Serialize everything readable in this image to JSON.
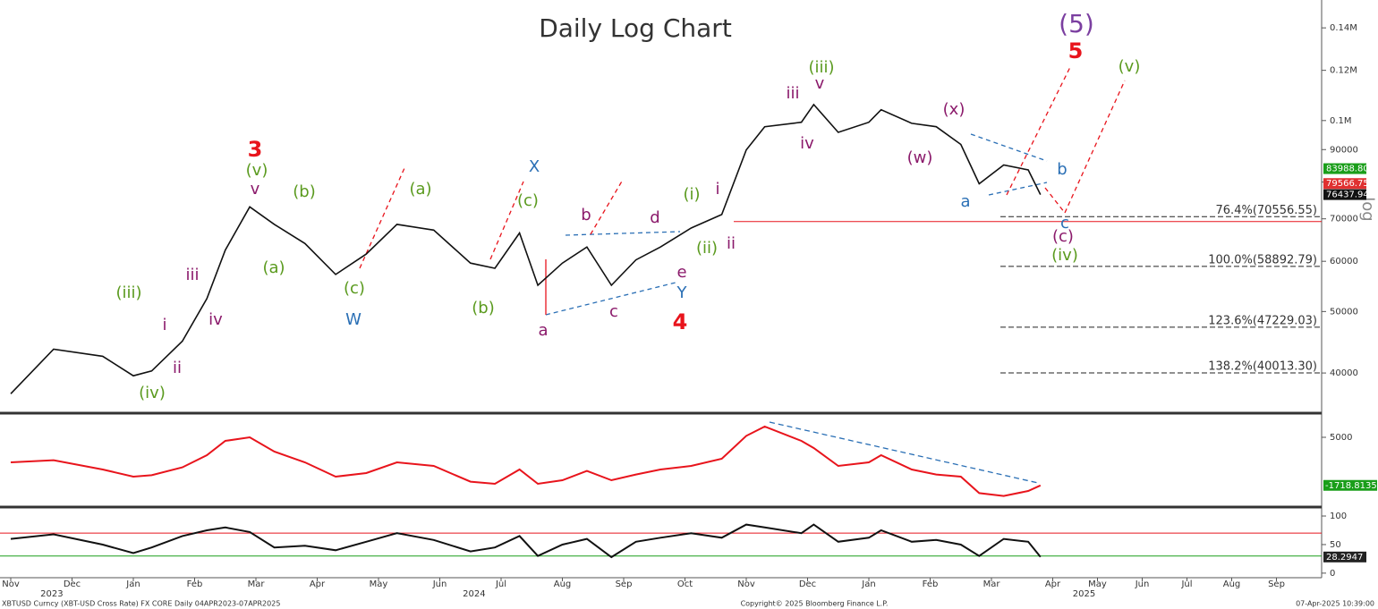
{
  "chart_data": {
    "type": "line",
    "title": "Daily Log Chart",
    "log": true,
    "x": [
      0,
      0.7,
      1.5,
      2,
      2.3,
      2.8,
      3.2,
      3.5,
      3.9,
      4.3,
      4.8,
      5.3,
      5.8,
      6.3,
      6.9,
      7.5,
      7.9,
      8.3,
      8.6,
      9.0,
      9.4,
      9.8,
      10.2,
      10.6,
      11.1,
      11.6,
      12,
      12.3,
      12.9,
      13.1,
      13.5,
      14.0,
      14.2,
      14.7,
      15.1,
      15.5,
      15.8,
      16.2,
      16.6,
      16.8
    ],
    "series": [
      {
        "color": "#111111",
        "values": [
          37100,
          43600,
          42500,
          39600,
          40300,
          44900,
          52400,
          62500,
          73100,
          68600,
          64000,
          57200,
          61600,
          68600,
          67200,
          59600,
          58500,
          66500,
          55000,
          59600,
          63200,
          55000,
          60300,
          63200,
          67700,
          71100,
          89900,
          97800,
          99400,
          106000,
          95800,
          99400,
          104000,
          99000,
          97800,
          91700,
          79500,
          85100,
          83600,
          76437.94
        ]
      }
    ],
    "ylim": [
      34800,
      154900
    ],
    "yticks": [
      40000,
      50000,
      60000,
      70000,
      80000,
      90000,
      {
        "value": 100000,
        "label": "0.1M"
      },
      {
        "value": 120000,
        "label": "0.12M"
      },
      {
        "value": 140000,
        "label": "0.14M"
      }
    ],
    "xlim": [
      -0.2,
      22.5
    ],
    "xticks": [
      {
        "value": 0,
        "label": "Nov"
      },
      {
        "value": 1,
        "label": "Dec"
      },
      {
        "value": 2,
        "label": "Jan"
      },
      {
        "value": 3,
        "label": "Feb"
      },
      {
        "value": 4,
        "label": "Mar"
      },
      {
        "value": 5,
        "label": "Apr"
      },
      {
        "value": 6,
        "label": "May"
      },
      {
        "value": 7,
        "label": "Jun"
      },
      {
        "value": 8,
        "label": "Jul"
      },
      {
        "value": 9,
        "label": "Aug"
      },
      {
        "value": 10,
        "label": "Sep"
      },
      {
        "value": 11,
        "label": "Oct"
      },
      {
        "value": 12,
        "label": "Nov"
      },
      {
        "value": 13,
        "label": "Dec"
      },
      {
        "value": 14,
        "label": "Jan"
      },
      {
        "value": 15,
        "label": "Feb"
      },
      {
        "value": 16,
        "label": "Mar"
      },
      {
        "value": 17,
        "label": "Apr"
      },
      {
        "value": 18,
        "label": "May"
      },
      {
        "value": 19,
        "label": "Jun"
      },
      {
        "value": 20,
        "label": "Jul"
      },
      {
        "value": 21,
        "label": "Aug"
      },
      {
        "value": 22,
        "label": "Sep"
      }
    ],
    "year_labels": [
      {
        "value": 0.67,
        "label": "2023"
      },
      {
        "value": 7.56,
        "label": "2024"
      },
      {
        "value": 17.7,
        "label": "2025"
      }
    ],
    "axis_label": "log",
    "price_labels": [
      {
        "value": 83988.8,
        "label": "83988.80",
        "color": "#1a9e1a"
      },
      {
        "value": 79566.75,
        "label": "79566.75",
        "color": "#e03030"
      },
      {
        "value": 76437.94,
        "label": "76437.94",
        "color": "#111111"
      }
    ],
    "support_line": 69300,
    "fib_levels": [
      {
        "value": 70556.55,
        "label": "76.4%(70556.55)"
      },
      {
        "value": 58892.79,
        "label": "100.0%(58892.79)"
      },
      {
        "value": 47229.03,
        "label": "123.6%(47229.03)"
      },
      {
        "value": 40013.3,
        "label": "138.2%(40013.30)"
      }
    ],
    "annotations": [
      {
        "text": "3",
        "color": "#e8141c"
      },
      {
        "text": "(v)",
        "color": "#5a9a1e"
      },
      {
        "text": "v",
        "color": "#8b1a6b"
      },
      {
        "text": "(b)",
        "color": "#5a9a1e"
      },
      {
        "text": "(a)",
        "color": "#5a9a1e"
      },
      {
        "text": "X",
        "color": "#2a6fb5"
      },
      {
        "text": "(c)",
        "color": "#5a9a1e"
      },
      {
        "text": "b",
        "color": "#8b1a6b"
      },
      {
        "text": "d",
        "color": "#8b1a6b"
      },
      {
        "text": "(i)",
        "color": "#5a9a1e"
      },
      {
        "text": "i",
        "color": "#8b1a6b"
      },
      {
        "text": "iii",
        "color": "#8b1a6b"
      },
      {
        "text": "(iii)",
        "color": "#5a9a1e"
      },
      {
        "text": "i",
        "color": "#8b1a6b"
      },
      {
        "text": "iv",
        "color": "#8b1a6b"
      },
      {
        "text": "ii",
        "color": "#8b1a6b"
      },
      {
        "text": "(iv)",
        "color": "#5a9a1e"
      },
      {
        "text": "(a)",
        "color": "#5a9a1e"
      },
      {
        "text": "(c)",
        "color": "#5a9a1e"
      },
      {
        "text": "W",
        "color": "#2a6fb5"
      },
      {
        "text": "(b)",
        "color": "#5a9a1e"
      },
      {
        "text": "a",
        "color": "#8b1a6b"
      },
      {
        "text": "c",
        "color": "#8b1a6b"
      },
      {
        "text": "e",
        "color": "#8b1a6b"
      },
      {
        "text": "Y",
        "color": "#2a6fb5"
      },
      {
        "text": "4",
        "color": "#e8141c"
      },
      {
        "text": "(ii)",
        "color": "#5a9a1e"
      },
      {
        "text": "ii",
        "color": "#8b1a6b"
      },
      {
        "text": "(iii)",
        "color": "#5a9a1e"
      },
      {
        "text": "iii",
        "color": "#8b1a6b"
      },
      {
        "text": "v",
        "color": "#8b1a6b"
      },
      {
        "text": "iv",
        "color": "#8b1a6b"
      },
      {
        "text": "(x)",
        "color": "#8b1a6b"
      },
      {
        "text": "(w)",
        "color": "#8b1a6b"
      },
      {
        "text": "a",
        "color": "#2a6fb5"
      },
      {
        "text": "b",
        "color": "#2a6fb5"
      },
      {
        "text": "c",
        "color": "#2a6fb5"
      },
      {
        "text": "(c)",
        "color": "#8b1a6b"
      },
      {
        "text": "(iv)",
        "color": "#5a9a1e"
      },
      {
        "text": "(5)",
        "color": "#7b3fa0"
      },
      {
        "text": "5",
        "color": "#e8141c"
      },
      {
        "text": "(v)",
        "color": "#5a9a1e"
      }
    ],
    "macd": {
      "ylim": [
        -4500,
        8125
      ],
      "yticks": [
        5000
      ],
      "series": [
        {
          "color": "#e8141c",
          "values": [
            1500,
            1800,
            500,
            -500,
            -300,
            800,
            2500,
            4500,
            5000,
            3000,
            1500,
            -500,
            0,
            1500,
            1000,
            -1200,
            -1500,
            500,
            -1500,
            -1000,
            300,
            -1000,
            -200,
            500,
            1000,
            2000,
            5200,
            6500,
            4500,
            3500,
            1000,
            1500,
            2500,
            500,
            -200,
            -500,
            -2800,
            -3200,
            -2500,
            -1718.8135
          ]
        }
      ],
      "value_label": "-1718.8135"
    },
    "rsi": {
      "ylim": [
        -8,
        111
      ],
      "yticks": [
        0,
        50,
        100
      ],
      "upper": 70,
      "lower": 30,
      "series": [
        {
          "color": "#111111",
          "values": [
            60,
            68,
            50,
            35,
            45,
            65,
            75,
            80,
            72,
            45,
            48,
            40,
            55,
            70,
            58,
            38,
            45,
            65,
            30,
            50,
            60,
            28,
            55,
            62,
            70,
            62,
            85,
            80,
            70,
            85,
            55,
            62,
            75,
            55,
            58,
            50,
            30,
            60,
            55,
            28.2947
          ]
        }
      ],
      "value_label": "28.2947"
    },
    "footer": {
      "left": "XBTUSD Curncy (XBT-USD Cross Rate) FX CORE  Daily 04APR2023-07APR2025",
      "center": "Copyright© 2025 Bloomberg Finance L.P.",
      "right": "07-Apr-2025 10:39:00"
    }
  }
}
